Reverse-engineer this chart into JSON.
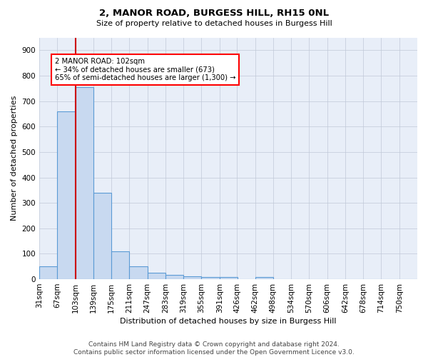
{
  "title1": "2, MANOR ROAD, BURGESS HILL, RH15 0NL",
  "title2": "Size of property relative to detached houses in Burgess Hill",
  "xlabel": "Distribution of detached houses by size in Burgess Hill",
  "ylabel": "Number of detached properties",
  "footnote1": "Contains HM Land Registry data © Crown copyright and database right 2024.",
  "footnote2": "Contains public sector information licensed under the Open Government Licence v3.0.",
  "bin_labels": [
    "31sqm",
    "67sqm",
    "103sqm",
    "139sqm",
    "175sqm",
    "211sqm",
    "247sqm",
    "283sqm",
    "319sqm",
    "355sqm",
    "391sqm",
    "426sqm",
    "462sqm",
    "498sqm",
    "534sqm",
    "570sqm",
    "606sqm",
    "642sqm",
    "678sqm",
    "714sqm",
    "750sqm"
  ],
  "bar_values": [
    52,
    660,
    755,
    340,
    110,
    50,
    25,
    17,
    12,
    9,
    8,
    0,
    10,
    0,
    0,
    0,
    0,
    0,
    0,
    0,
    0
  ],
  "bar_color": "#c8d9f0",
  "bar_edge_color": "#5b9bd5",
  "bg_color": "#e8eef8",
  "grid_color": "#c0c8d8",
  "vline_color": "#cc0000",
  "annotation_text": "2 MANOR ROAD: 102sqm\n← 34% of detached houses are smaller (673)\n65% of semi-detached houses are larger (1,300) →",
  "annotation_box_color": "white",
  "annotation_box_edge_color": "red",
  "ylim": [
    0,
    950
  ],
  "yticks": [
    0,
    100,
    200,
    300,
    400,
    500,
    600,
    700,
    800,
    900
  ],
  "bin_width": 36,
  "bin_starts": [
    31,
    67,
    103,
    139,
    175,
    211,
    247,
    283,
    319,
    355,
    391,
    426,
    462,
    498,
    534,
    570,
    606,
    642,
    678,
    714,
    750
  ],
  "vline_x_index": 2,
  "title1_fontsize": 9.5,
  "title2_fontsize": 8,
  "axis_label_fontsize": 8,
  "tick_fontsize": 7.5,
  "footnote_fontsize": 6.5
}
